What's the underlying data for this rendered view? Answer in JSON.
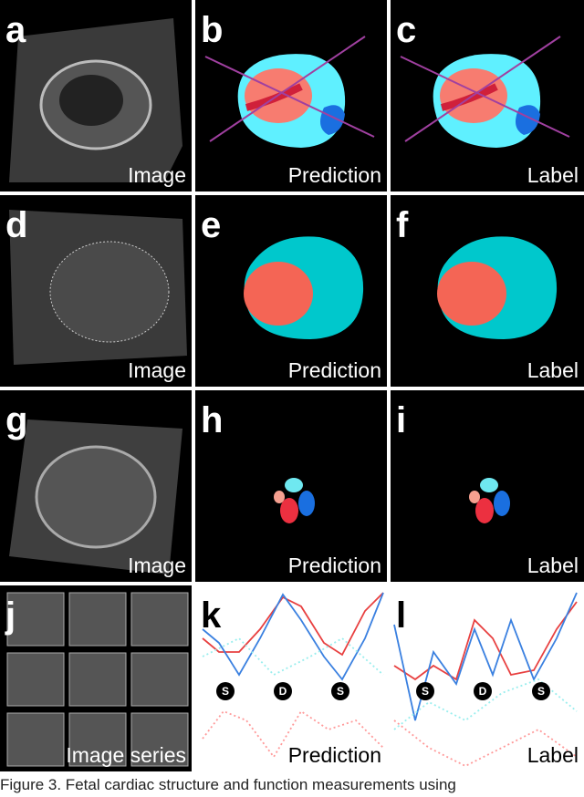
{
  "panels": [
    {
      "letter": "a",
      "label": "Image"
    },
    {
      "letter": "b",
      "label": "Prediction"
    },
    {
      "letter": "c",
      "label": "Label"
    },
    {
      "letter": "d",
      "label": "Image"
    },
    {
      "letter": "e",
      "label": "Prediction"
    },
    {
      "letter": "f",
      "label": "Label"
    },
    {
      "letter": "g",
      "label": "Image"
    },
    {
      "letter": "h",
      "label": "Prediction"
    },
    {
      "letter": "i",
      "label": "Label"
    },
    {
      "letter": "j",
      "label": "Image series"
    },
    {
      "letter": "k",
      "label": "Prediction"
    },
    {
      "letter": "l",
      "label": "Label"
    }
  ],
  "markers": {
    "k": [
      "S",
      "D",
      "S"
    ],
    "l": [
      "S",
      "D",
      "S"
    ]
  },
  "caption": "Figure 3. Fetal cardiac structure and function measurements using"
}
